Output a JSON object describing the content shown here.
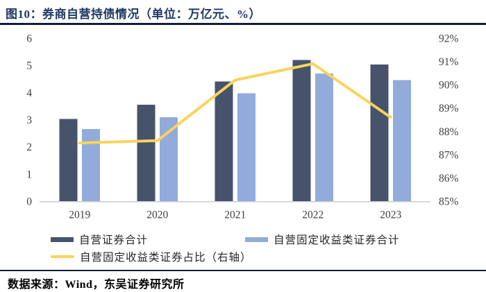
{
  "header": {
    "title": "图10：券商自营持债情况（单位：万亿元、%）"
  },
  "footer": {
    "source": "数据来源：Wind，东吴证券研究所"
  },
  "colors": {
    "title": "#1F3864",
    "rule": "#131C33",
    "axis_line": "#C8CCD2",
    "tick_label": "#3F3F3F",
    "dark_bar": "#46536B",
    "light_bar": "#92ABDB",
    "ratio_line": "#FBD35B"
  },
  "chart_data": {
    "type": "bar",
    "title": "券商自营持债情况",
    "unit_label": "万亿元、%",
    "categories": [
      "2019",
      "2020",
      "2021",
      "2022",
      "2023"
    ],
    "series": [
      {
        "name": "自营证券合计",
        "type": "bar",
        "axis": "left",
        "color": "#46536B",
        "values": [
          3.03,
          3.55,
          4.4,
          5.2,
          5.03
        ]
      },
      {
        "name": "自营固定收益类证券合计",
        "type": "bar",
        "axis": "left",
        "color": "#92ABDB",
        "values": [
          2.65,
          3.09,
          3.97,
          4.7,
          4.45
        ]
      },
      {
        "name": "自营固定收益类证券占比（右轴）",
        "type": "line",
        "axis": "right",
        "color": "#FBD35B",
        "values": [
          87.5,
          87.6,
          90.2,
          90.9,
          88.6
        ]
      }
    ],
    "left_axis": {
      "min": 0,
      "max": 6,
      "ticks": [
        "0",
        "1",
        "2",
        "3",
        "4",
        "5",
        "6"
      ]
    },
    "right_axis": {
      "min": 85,
      "max": 92,
      "ticks": [
        "85%",
        "86%",
        "87%",
        "88%",
        "89%",
        "90%",
        "91%",
        "92%"
      ]
    },
    "grid": false,
    "legend_position": "bottom"
  }
}
